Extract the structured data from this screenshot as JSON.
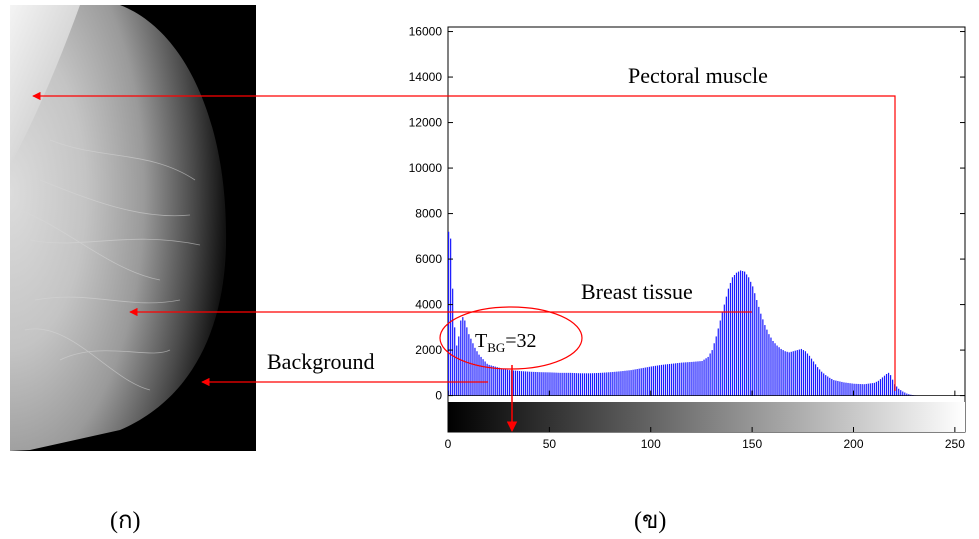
{
  "colors": {
    "bar": "#1a1aff",
    "annotation": "#ff0000",
    "axis": "#000000"
  },
  "left_panel": {
    "caption": "(ก)",
    "image": "mammogram-grayscale"
  },
  "right_panel": {
    "caption": "(ข)"
  },
  "annotations": {
    "pectoral_muscle": "Pectoral muscle",
    "breast_tissue": "Breast tissue",
    "background": "Background",
    "threshold": {
      "base": "T",
      "subscript": "BG",
      "rest": "=32",
      "value": 32
    }
  },
  "chart_data": {
    "type": "bar",
    "title": "",
    "xlabel": "",
    "ylabel": "",
    "xlim": [
      0,
      255
    ],
    "ylim": [
      -1600,
      16200
    ],
    "grid": false,
    "colorbar": "grayscale-gradient",
    "x_ticks": [
      0,
      50,
      100,
      150,
      200,
      250
    ],
    "y_ticks": [
      0,
      2000,
      4000,
      6000,
      8000,
      10000,
      12000,
      14000,
      16000
    ],
    "x_tick_labels": [
      "0",
      "50",
      "100",
      "150",
      "200",
      "250"
    ],
    "y_tick_labels": [
      "0",
      "2000",
      "4000",
      "6000",
      "8000",
      "10000",
      "12000",
      "14000",
      "16000"
    ],
    "series": [
      {
        "points": [
          [
            0,
            7200
          ],
          [
            1,
            6900
          ],
          [
            2,
            4700
          ],
          [
            3,
            3000
          ],
          [
            4,
            2200
          ],
          [
            5,
            2600
          ],
          [
            6,
            3300
          ],
          [
            7,
            3450
          ],
          [
            8,
            3300
          ],
          [
            9,
            3000
          ],
          [
            10,
            2700
          ],
          [
            11,
            2500
          ],
          [
            12,
            2300
          ],
          [
            13,
            2100
          ],
          [
            14,
            1950
          ],
          [
            15,
            1800
          ],
          [
            16,
            1700
          ],
          [
            17,
            1600
          ],
          [
            18,
            1500
          ],
          [
            19,
            1400
          ],
          [
            20,
            1350
          ],
          [
            22,
            1300
          ],
          [
            24,
            1250
          ],
          [
            26,
            1200
          ],
          [
            28,
            1150
          ],
          [
            30,
            1120
          ],
          [
            35,
            1080
          ],
          [
            40,
            1050
          ],
          [
            45,
            1030
          ],
          [
            50,
            1020
          ],
          [
            55,
            1000
          ],
          [
            60,
            1000
          ],
          [
            65,
            980
          ],
          [
            70,
            980
          ],
          [
            75,
            1000
          ],
          [
            80,
            1030
          ],
          [
            85,
            1070
          ],
          [
            90,
            1120
          ],
          [
            95,
            1200
          ],
          [
            100,
            1280
          ],
          [
            105,
            1350
          ],
          [
            110,
            1400
          ],
          [
            115,
            1450
          ],
          [
            120,
            1480
          ],
          [
            125,
            1520
          ],
          [
            128,
            1700
          ],
          [
            130,
            2000
          ],
          [
            132,
            2600
          ],
          [
            134,
            3300
          ],
          [
            136,
            4000
          ],
          [
            138,
            4700
          ],
          [
            140,
            5200
          ],
          [
            142,
            5400
          ],
          [
            144,
            5500
          ],
          [
            146,
            5450
          ],
          [
            148,
            5200
          ],
          [
            150,
            4800
          ],
          [
            152,
            4200
          ],
          [
            154,
            3600
          ],
          [
            156,
            3100
          ],
          [
            158,
            2700
          ],
          [
            160,
            2400
          ],
          [
            162,
            2200
          ],
          [
            164,
            2050
          ],
          [
            166,
            1950
          ],
          [
            168,
            1900
          ],
          [
            170,
            1950
          ],
          [
            172,
            2000
          ],
          [
            174,
            2050
          ],
          [
            176,
            1950
          ],
          [
            178,
            1750
          ],
          [
            180,
            1500
          ],
          [
            182,
            1250
          ],
          [
            184,
            1050
          ],
          [
            186,
            900
          ],
          [
            188,
            780
          ],
          [
            190,
            680
          ],
          [
            195,
            580
          ],
          [
            200,
            520
          ],
          [
            205,
            500
          ],
          [
            210,
            560
          ],
          [
            212,
            650
          ],
          [
            214,
            800
          ],
          [
            216,
            950
          ],
          [
            217,
            1000
          ],
          [
            218,
            900
          ],
          [
            219,
            700
          ],
          [
            220,
            500
          ],
          [
            222,
            300
          ],
          [
            224,
            180
          ],
          [
            226,
            90
          ],
          [
            228,
            40
          ],
          [
            230,
            10
          ],
          [
            232,
            0
          ],
          [
            255,
            0
          ]
        ]
      }
    ]
  }
}
